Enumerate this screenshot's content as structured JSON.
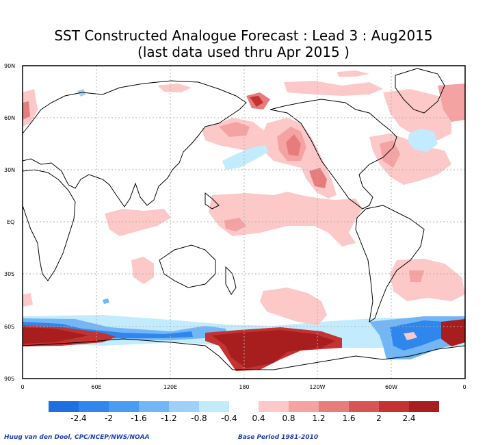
{
  "map": {
    "title": "SST Constructed Analogue Forecast : Lead 3 : Aug2015",
    "subtitle": "(last data used thru Apr 2015 )",
    "lat_labels": [
      "90N",
      "60N",
      "30N",
      "EQ",
      "30S",
      "60S",
      "90S"
    ],
    "lon_labels": [
      "0",
      "60E",
      "120E",
      "180",
      "120W",
      "60W",
      "0"
    ],
    "credit": "Huug van den Dool, CPC/NCEP/NWS/NOAA",
    "base_period": "Base Period 1981-2010"
  },
  "colorbar": {
    "negative": {
      "colors": [
        "#1e6fe0",
        "#2f86ec",
        "#4a9cf2",
        "#73b6f6",
        "#9fd0f9",
        "#c2ecfd"
      ],
      "labels": [
        "-2.4",
        "-2",
        "-1.6",
        "-1.2",
        "-0.8",
        "-0.4"
      ]
    },
    "positive": {
      "colors": [
        "#fcc8c8",
        "#f4a2a2",
        "#e67c7c",
        "#d95454",
        "#c53232",
        "#a81e1e"
      ],
      "labels": [
        "0.4",
        "0.8",
        "1.2",
        "1.6",
        "2",
        "2.4"
      ]
    }
  }
}
